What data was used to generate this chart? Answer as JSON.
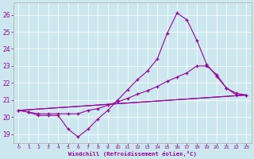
{
  "xlabel": "Windchill (Refroidissement éolien,°C)",
  "xlim_min": -0.5,
  "xlim_max": 23.5,
  "ylim_min": 18.5,
  "ylim_max": 26.7,
  "yticks": [
    19,
    20,
    21,
    22,
    23,
    24,
    25,
    26
  ],
  "xticks": [
    0,
    1,
    2,
    3,
    4,
    5,
    6,
    7,
    8,
    9,
    10,
    11,
    12,
    13,
    14,
    15,
    16,
    17,
    18,
    19,
    20,
    21,
    22,
    23
  ],
  "bg_color": "#cce8ee",
  "line_color": "#990099",
  "line1_x": [
    0,
    1,
    2,
    3,
    4,
    5,
    6,
    7,
    8,
    9,
    10,
    11,
    12,
    13,
    14,
    15,
    16,
    17,
    18,
    19,
    20,
    21,
    22,
    23
  ],
  "line1_y": [
    20.4,
    20.3,
    20.1,
    20.1,
    20.1,
    19.3,
    18.85,
    19.3,
    19.9,
    20.4,
    21.0,
    21.6,
    22.2,
    22.7,
    23.4,
    24.9,
    26.1,
    25.7,
    24.5,
    23.1,
    22.4,
    21.7,
    21.3,
    21.3
  ],
  "line2_x": [
    0,
    1,
    2,
    3,
    4,
    5,
    6,
    7,
    8,
    9,
    10,
    11,
    12,
    13,
    14,
    15,
    16,
    17,
    18,
    19,
    20,
    21,
    22,
    23
  ],
  "line2_y": [
    20.4,
    20.3,
    20.2,
    20.2,
    20.2,
    20.2,
    20.2,
    20.4,
    20.5,
    20.7,
    20.9,
    21.1,
    21.35,
    21.55,
    21.8,
    22.1,
    22.35,
    22.6,
    23.0,
    23.0,
    22.5,
    21.7,
    21.4,
    21.3
  ],
  "line3_x": [
    0,
    23
  ],
  "line3_y": [
    20.4,
    21.3
  ],
  "line4_x": [
    0,
    23
  ],
  "line4_y": [
    20.4,
    21.3
  ]
}
